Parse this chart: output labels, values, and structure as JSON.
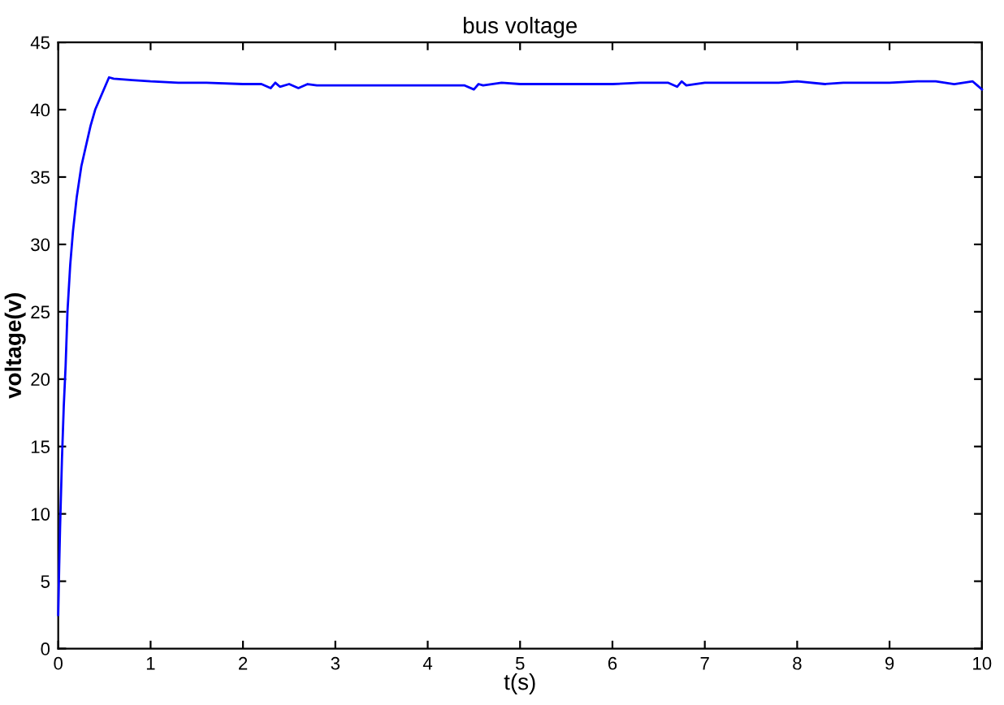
{
  "chart_data": {
    "type": "line",
    "title": "bus voltage",
    "xlabel": "t(s)",
    "ylabel": "voltage(v)",
    "series": [
      {
        "color": "#0000ff",
        "x": [
          0,
          0.01,
          0.02,
          0.04,
          0.06,
          0.08,
          0.1,
          0.13,
          0.16,
          0.2,
          0.25,
          0.3,
          0.35,
          0.4,
          0.45,
          0.5,
          0.55,
          0.6,
          0.8,
          1.0,
          1.3,
          1.6,
          2.0,
          2.2,
          2.3,
          2.35,
          2.4,
          2.5,
          2.6,
          2.7,
          2.8,
          3.0,
          3.3,
          3.6,
          4.0,
          4.4,
          4.5,
          4.55,
          4.6,
          4.8,
          5.0,
          5.2,
          5.5,
          5.8,
          6.0,
          6.3,
          6.5,
          6.6,
          6.7,
          6.75,
          6.8,
          7.0,
          7.2,
          7.5,
          7.8,
          8.0,
          8.3,
          8.5,
          8.8,
          9.0,
          9.3,
          9.5,
          9.7,
          9.9,
          9.95,
          10.0
        ],
        "values": [
          2.5,
          6,
          9,
          14,
          18,
          21,
          25,
          28.5,
          31,
          33.5,
          35.8,
          37.3,
          38.8,
          40,
          40.8,
          41.6,
          42.4,
          42.3,
          42.2,
          42.1,
          42.0,
          42.0,
          41.9,
          41.9,
          41.6,
          42.0,
          41.7,
          41.9,
          41.6,
          41.9,
          41.8,
          41.8,
          41.8,
          41.8,
          41.8,
          41.8,
          41.5,
          41.9,
          41.8,
          42.0,
          41.9,
          41.9,
          41.9,
          41.9,
          41.9,
          42.0,
          42.0,
          42.0,
          41.7,
          42.1,
          41.8,
          42.0,
          42.0,
          42.0,
          42.0,
          42.1,
          41.9,
          42.0,
          42.0,
          42.0,
          42.1,
          42.1,
          41.9,
          42.1,
          41.8,
          41.5
        ]
      }
    ],
    "xlim": [
      0,
      10
    ],
    "ylim": [
      0,
      45
    ],
    "xticks": [
      0,
      1,
      2,
      3,
      4,
      5,
      6,
      7,
      8,
      9,
      10
    ],
    "yticks": [
      0,
      5,
      10,
      15,
      20,
      25,
      30,
      35,
      40,
      45
    ],
    "grid": false,
    "legend": false
  }
}
